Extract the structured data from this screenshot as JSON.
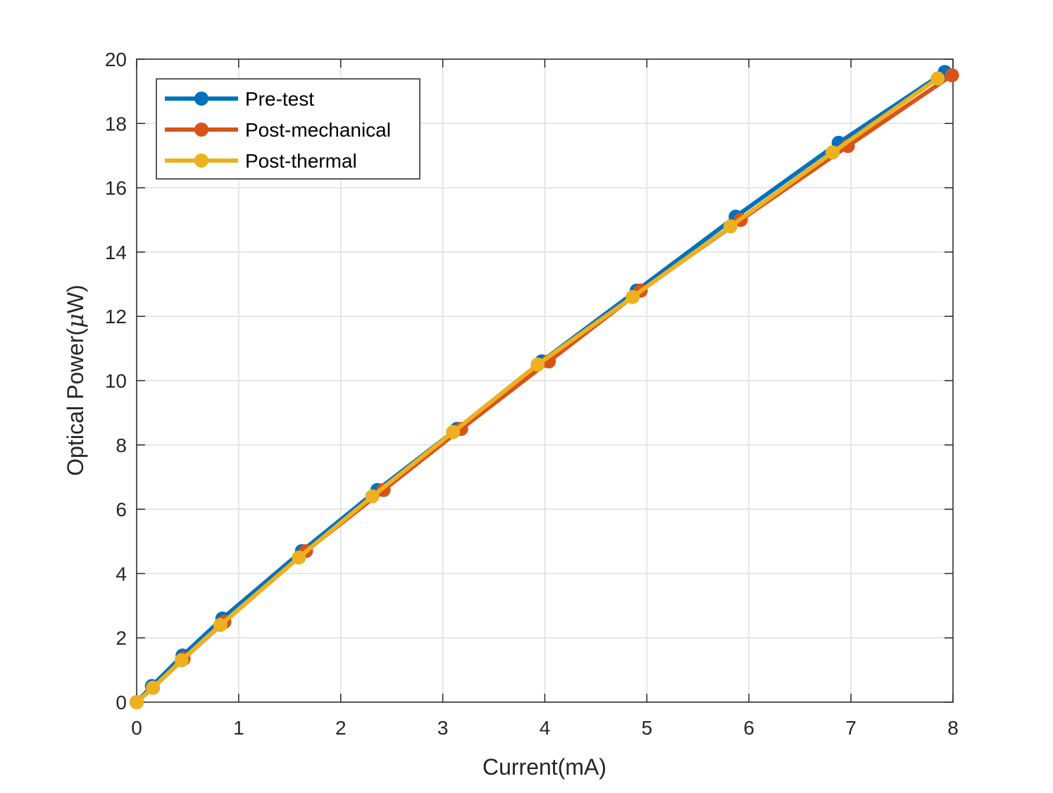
{
  "chart_data": {
    "type": "line",
    "title": "",
    "xlabel": "Current(mA)",
    "ylabel_prefix": "Optical Power(",
    "ylabel_mu": "μ",
    "ylabel_suffix": "W)",
    "xlim": [
      0,
      8
    ],
    "ylim": [
      0,
      20
    ],
    "xticks": [
      0,
      1,
      2,
      3,
      4,
      5,
      6,
      7,
      8
    ],
    "yticks": [
      0,
      2,
      4,
      6,
      8,
      10,
      12,
      14,
      16,
      18,
      20
    ],
    "xtick_labels": [
      "0",
      "1",
      "2",
      "3",
      "4",
      "5",
      "6",
      "7",
      "8"
    ],
    "ytick_labels": [
      "0",
      "2",
      "4",
      "6",
      "8",
      "10",
      "12",
      "14",
      "16",
      "18",
      "20"
    ],
    "grid": true,
    "legend_position": "top-left",
    "series": [
      {
        "name": "Pre-test",
        "color": "#0072BD",
        "x": [
          0,
          0.15,
          0.45,
          0.84,
          1.62,
          2.36,
          3.14,
          3.97,
          4.9,
          5.87,
          6.88,
          7.92
        ],
        "y": [
          0,
          0.5,
          1.45,
          2.6,
          4.7,
          6.6,
          8.5,
          10.6,
          12.8,
          15.1,
          17.4,
          19.6
        ]
      },
      {
        "name": "Post-mechanical",
        "color": "#D95319",
        "x": [
          0,
          0.16,
          0.46,
          0.86,
          1.66,
          2.42,
          3.18,
          4.04,
          4.94,
          5.92,
          6.97,
          7.99
        ],
        "y": [
          0,
          0.45,
          1.35,
          2.5,
          4.7,
          6.6,
          8.5,
          10.6,
          12.8,
          15.0,
          17.3,
          19.5
        ]
      },
      {
        "name": "Post-thermal",
        "color": "#EDB120",
        "x": [
          0,
          0.16,
          0.44,
          0.82,
          1.59,
          2.31,
          3.1,
          3.93,
          4.86,
          5.82,
          6.82,
          7.85
        ],
        "y": [
          0,
          0.45,
          1.3,
          2.4,
          4.5,
          6.4,
          8.4,
          10.5,
          12.6,
          14.8,
          17.1,
          19.4
        ]
      }
    ]
  }
}
